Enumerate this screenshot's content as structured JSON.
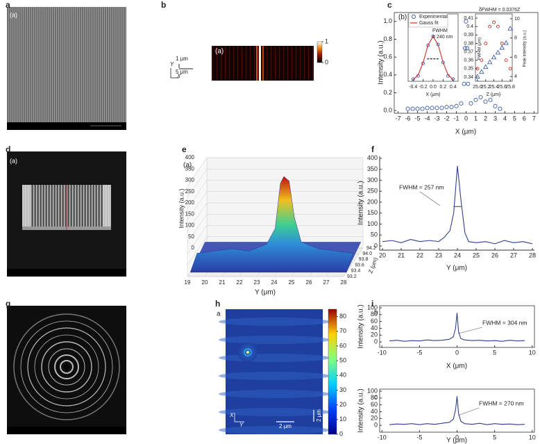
{
  "panel_letters": [
    "a",
    "b",
    "c",
    "d",
    "e",
    "f",
    "g",
    "h",
    "i"
  ],
  "sem_labels": [
    "(a)",
    "(a)"
  ],
  "chart_data": [
    {
      "type": "scatter",
      "title": "(b)",
      "xlabel": "X (μm)",
      "ylabel": "Intensity (a.u.)",
      "x": [
        -6,
        -5.5,
        -5,
        -4.5,
        -4,
        -3.5,
        -3,
        -2.5,
        -2,
        -1.5,
        -1,
        -0.5,
        -0.2,
        -0.1,
        0,
        0.1,
        0.2,
        0.5,
        1,
        1.5,
        2,
        2.5,
        3,
        3.5
      ],
      "series": [
        {
          "color": "#3b5ca8",
          "marker": "circle",
          "values": [
            0.02,
            0.02,
            0.02,
            0.02,
            0.03,
            0.03,
            0.03,
            0.03,
            0.04,
            0.04,
            0.05,
            0.08,
            0.3,
            0.7,
            1,
            0.7,
            0.3,
            0.08,
            0.12,
            0.15,
            0.1,
            0.12,
            0.05,
            0.02
          ]
        }
      ],
      "xlim": [
        -7.4,
        7.4
      ],
      "ylim": [
        -0.03,
        1.1
      ],
      "xticks": [
        -7,
        -6,
        -5,
        -4,
        -3,
        -2,
        -1,
        0,
        1,
        2,
        3,
        4,
        5,
        6,
        7
      ],
      "yticks": [
        {
          "value": 0,
          "label": "0.0"
        },
        0.2,
        0.4,
        0.6,
        0.8,
        {
          "value": 1,
          "label": "1.0"
        }
      ]
    },
    {
      "type": "line",
      "xlabel": "X (μm)",
      "annotations": [
        "FWHM",
        "= 240 nm"
      ],
      "x": [
        -0.4,
        -0.3,
        -0.2,
        -0.1,
        0,
        0.1,
        0.2,
        0.3,
        0.4
      ],
      "series": [
        {
          "name": "Experimental",
          "color": "#3b5ca8",
          "marker": "circle",
          "values": [
            0.05,
            0.12,
            0.4,
            0.8,
            1,
            0.82,
            0.42,
            0.12,
            0.05
          ]
        },
        {
          "name": "Gauss fit",
          "color": "#d62728",
          "values": [
            0.04,
            0.14,
            0.42,
            0.81,
            1,
            0.81,
            0.42,
            0.14,
            0.04
          ]
        }
      ],
      "xlim": [
        -0.5,
        0.5
      ],
      "ylim": [
        0,
        1.5
      ],
      "xticks": [
        -0.4,
        -0.2,
        {
          "value": 0,
          "label": "0.0"
        },
        0.2,
        0.4
      ],
      "legend": "upper left"
    },
    {
      "type": "scatter",
      "xlabel": "Z (μm)",
      "ylabel": "FWHM (μm)",
      "y2label": "Peak intensity (a.u.)",
      "annotations": [
        "δFWHM = 0.0376Z"
      ],
      "x": [
        25,
        25.1,
        25.2,
        25.3,
        25.4,
        25.5,
        25.6,
        25.7,
        25.8
      ],
      "series": [
        {
          "color": "#d62728",
          "marker": "circle",
          "values": [
            0.35,
            0.36,
            0.38,
            0.4,
            0.405,
            0.4,
            0.38,
            0.36,
            0.35
          ]
        },
        {
          "color": "#3b5ca8",
          "marker": "triangle",
          "axis": "y2",
          "values": [
            4,
            4.5,
            5,
            5.5,
            6,
            6.5,
            7,
            7.5,
            9
          ]
        }
      ],
      "xlim": [
        24.95,
        25.85
      ],
      "ylim": [
        0.335,
        0.415
      ],
      "y2lim": [
        3.5,
        10.5
      ],
      "xticks": [
        {
          "value": 25,
          "label": "25.0"
        },
        25.2,
        25.4,
        25.6,
        25.8
      ],
      "yticks": [
        0.34,
        0.35,
        0.36,
        0.37,
        0.38,
        0.39,
        0.4,
        0.41
      ],
      "y2ticks": [
        4,
        6,
        8,
        10
      ]
    },
    {
      "type": "surface",
      "title": "(a)",
      "xlabel": "Y (μm)",
      "ylabel": "Intensity (a.u.)",
      "zlabel": "Z (μm)",
      "x": [
        19,
        20,
        21,
        22,
        23,
        23.5,
        23.8,
        24,
        24.3,
        24.6,
        25,
        26,
        27,
        28
      ],
      "values": [
        40,
        50,
        60,
        50,
        80,
        150,
        350,
        380,
        360,
        200,
        90,
        60,
        50,
        40
      ],
      "xlim": [
        19,
        28
      ],
      "ylim": [
        0,
        400
      ],
      "zlim": [
        93.2,
        94.2
      ],
      "xticks": [
        19,
        20,
        21,
        22,
        23,
        24,
        25,
        26,
        27,
        28
      ],
      "yticks": [
        0,
        50,
        100,
        150,
        200,
        250,
        300,
        350,
        400
      ],
      "zticks": [
        93.2,
        93.4,
        93.6,
        93.8,
        {
          "value": 94,
          "label": "94.0"
        },
        94.2
      ]
    },
    {
      "type": "line",
      "xlabel": "Y (μm)",
      "ylabel": "Intensity (a.u.)",
      "annotations": [
        "FWHM = 257 nm"
      ],
      "x": [
        20,
        20.5,
        21,
        21.5,
        22,
        22.5,
        23,
        23.3,
        23.6,
        23.8,
        24,
        24.2,
        24.4,
        24.6,
        25,
        25.5,
        26,
        26.5,
        27,
        27.5,
        28
      ],
      "series": [
        {
          "color": "#2e3d8f",
          "values": [
            20,
            25,
            15,
            30,
            20,
            25,
            20,
            40,
            70,
            150,
            365,
            200,
            60,
            20,
            15,
            20,
            10,
            25,
            15,
            20,
            10
          ]
        }
      ],
      "xlim": [
        19.85,
        28.11
      ],
      "ylim": [
        -19,
        409
      ],
      "xticks": [
        20,
        21,
        22,
        23,
        24,
        25,
        26,
        27,
        28
      ],
      "yticks": [
        0,
        50,
        100,
        150,
        200,
        250,
        300,
        350,
        400
      ]
    },
    {
      "type": "line",
      "title": "b",
      "xlabel": "X (μm)",
      "ylabel": "Intensity (a.u.)",
      "annotations": [
        "FWHM = 304 nm"
      ],
      "x": [
        -9,
        -8,
        -7,
        -6,
        -5,
        -4,
        -3,
        -2,
        -1,
        -0.5,
        -0.2,
        0,
        0.2,
        0.5,
        1,
        2,
        3,
        4,
        5,
        6,
        7,
        8,
        9
      ],
      "series": [
        {
          "color": "#2e3d8f",
          "values": [
            3,
            5,
            2,
            4,
            3,
            6,
            4,
            5,
            8,
            15,
            40,
            85,
            30,
            10,
            6,
            4,
            5,
            3,
            4,
            2,
            5,
            3,
            4
          ]
        }
      ],
      "xlim": [
        -10.3,
        10.3
      ],
      "ylim": [
        -16,
        106
      ],
      "xticks": [
        -10,
        -5,
        0,
        5,
        10
      ],
      "yticks": [
        0,
        20,
        40,
        60,
        80,
        100
      ]
    },
    {
      "type": "line",
      "title": "c",
      "xlabel": "Y (μm)",
      "ylabel": "Intensity (a.u.)",
      "annotations": [
        "FWHM = 270 nm"
      ],
      "x": [
        -9,
        -8,
        -7,
        -6,
        -5,
        -4,
        -3,
        -2,
        -1,
        -0.5,
        -0.2,
        0,
        0.2,
        0.5,
        1,
        2,
        3,
        4,
        5,
        6,
        7,
        8,
        9
      ],
      "series": [
        {
          "color": "#2e3d8f",
          "values": [
            2,
            4,
            3,
            5,
            2,
            5,
            3,
            6,
            9,
            18,
            45,
            85,
            35,
            12,
            5,
            3,
            6,
            2,
            5,
            3,
            4,
            2,
            3
          ]
        }
      ],
      "xlim": [
        -10.3,
        10.3
      ],
      "ylim": [
        -20,
        106
      ],
      "xticks": [
        -10,
        -5,
        0,
        5,
        10
      ],
      "yticks": [
        0,
        20,
        40,
        60,
        80,
        100
      ]
    },
    {
      "type": "heatmap",
      "title": "(a)",
      "scale_labels": [
        "1 μm",
        "5 μm"
      ],
      "axis_letters": [
        "Y",
        "X"
      ],
      "clim": [
        0,
        1
      ],
      "cticks": [
        0,
        1
      ]
    },
    {
      "type": "heatmap",
      "title": "a",
      "scale_labels": [
        "2 μm",
        "2 μm"
      ],
      "axis_letters": [
        "X",
        "Y"
      ],
      "clim": [
        0,
        85
      ],
      "cticks": [
        0,
        10,
        20,
        30,
        40,
        50,
        60,
        70,
        80
      ]
    }
  ]
}
